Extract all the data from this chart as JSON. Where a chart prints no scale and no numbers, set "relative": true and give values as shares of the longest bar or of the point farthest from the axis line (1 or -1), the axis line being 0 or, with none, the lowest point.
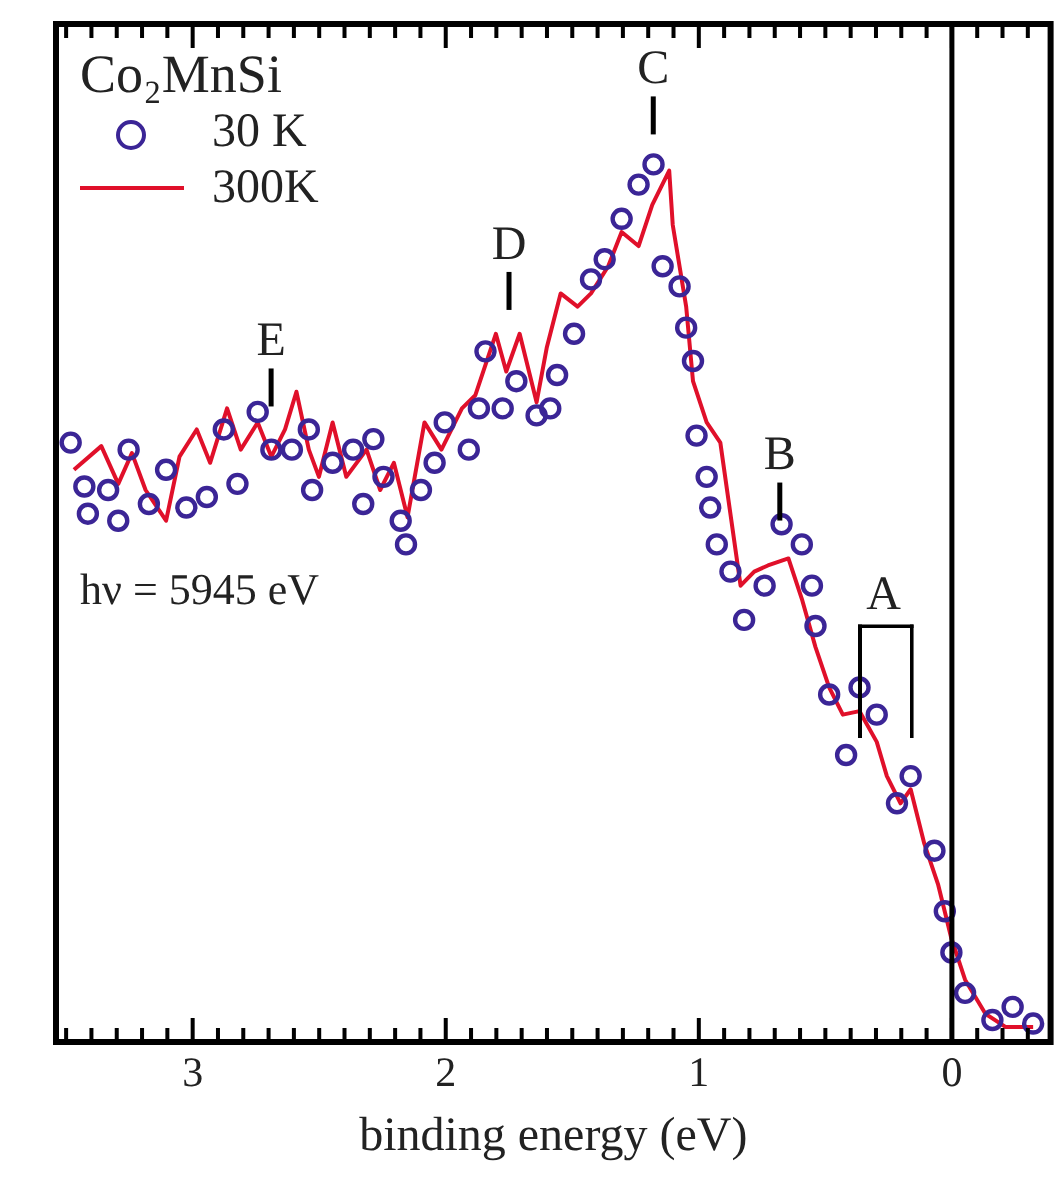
{
  "chart_data": {
    "type": "line",
    "xlabel": "binding energy (eV)",
    "legend_title": "Co₂MnSi",
    "legend": "top left",
    "relative": true,
    "xlim": [
      3.54,
      -0.39
    ],
    "xticks": [
      {
        "value": 3.5,
        "label": null
      },
      {
        "value": 3.4,
        "label": null
      },
      {
        "value": 3.3,
        "label": null
      },
      {
        "value": 3.2,
        "label": null
      },
      {
        "value": 3.1,
        "label": null
      },
      3,
      {
        "value": 2.9,
        "label": null
      },
      {
        "value": 2.8,
        "label": null
      },
      {
        "value": 2.7,
        "label": null
      },
      {
        "value": 2.6,
        "label": null
      },
      {
        "value": 2.5,
        "label": null
      },
      {
        "value": 2.4,
        "label": null
      },
      {
        "value": 2.3,
        "label": null
      },
      {
        "value": 2.2,
        "label": null
      },
      {
        "value": 2.1,
        "label": null
      },
      2,
      {
        "value": 1.9,
        "label": null
      },
      {
        "value": 1.8,
        "label": null
      },
      {
        "value": 1.7,
        "label": null
      },
      {
        "value": 1.6,
        "label": null
      },
      {
        "value": 1.5,
        "label": null
      },
      {
        "value": 1.4,
        "label": null
      },
      {
        "value": 1.3,
        "label": null
      },
      {
        "value": 1.2,
        "label": null
      },
      {
        "value": 1.1,
        "label": null
      },
      1,
      {
        "value": 0.9,
        "label": null
      },
      {
        "value": 0.8,
        "label": null
      },
      {
        "value": 0.7,
        "label": null
      },
      {
        "value": 0.6,
        "label": null
      },
      {
        "value": 0.5,
        "label": null
      },
      {
        "value": 0.4,
        "label": null
      },
      {
        "value": 0.3,
        "label": null
      },
      {
        "value": 0.2,
        "label": null
      },
      {
        "value": 0.1,
        "label": null
      },
      0,
      {
        "value": -0.1,
        "label": null
      },
      {
        "value": -0.2,
        "label": null
      },
      {
        "value": -0.3,
        "label": null
      }
    ],
    "ref_lines": [
      {
        "axis": "x",
        "value": 0,
        "color": "#000000"
      }
    ],
    "annotations": [
      "hν = 5945 eV",
      {
        "text": "E",
        "x": 2.69,
        "y": 0.69
      },
      {
        "text": "D",
        "x": 1.75,
        "y": 0.8
      },
      {
        "text": "C",
        "x": 1.18,
        "y": 1
      },
      {
        "text": "B",
        "x": 0.68,
        "y": 0.56
      },
      {
        "text": "A",
        "x": 0.27,
        "y": 0.38
      }
    ],
    "series": [
      {
        "name": "30 K",
        "type": "scatter",
        "marker": "circle",
        "color": "#3b2596",
        "x": [
          3.482,
          3.428,
          3.414,
          3.334,
          3.294,
          3.253,
          3.173,
          3.105,
          3.025,
          2.944,
          2.877,
          2.823,
          2.743,
          2.689,
          2.608,
          2.541,
          2.528,
          2.447,
          2.366,
          2.326,
          2.286,
          2.246,
          2.178,
          2.157,
          2.098,
          2.044,
          2.004,
          1.909,
          1.869,
          1.843,
          1.775,
          1.721,
          1.641,
          1.587,
          1.56,
          1.493,
          1.426,
          1.372,
          1.305,
          1.238,
          1.179,
          1.143,
          1.076,
          1.05,
          1.023,
          1.009,
          0.969,
          0.955,
          0.929,
          0.875,
          0.821,
          0.74,
          0.673,
          0.593,
          0.553,
          0.539,
          0.485,
          0.418,
          0.365,
          0.297,
          0.217,
          0.163,
          0.069,
          0.028,
          0.002,
          -0.052,
          -0.16,
          -0.24,
          -0.321
        ],
        "values": [
          0.683,
          0.633,
          0.602,
          0.629,
          0.594,
          0.675,
          0.613,
          0.652,
          0.609,
          0.621,
          0.698,
          0.636,
          0.718,
          0.675,
          0.675,
          0.698,
          0.629,
          0.66,
          0.675,
          0.613,
          0.687,
          0.644,
          0.594,
          0.567,
          0.629,
          0.66,
          0.706,
          0.675,
          0.722,
          0.787,
          0.722,
          0.753,
          0.714,
          0.722,
          0.76,
          0.807,
          0.869,
          0.892,
          0.938,
          0.977,
          1,
          0.884,
          0.861,
          0.814,
          0.776,
          0.691,
          0.644,
          0.609,
          0.567,
          0.536,
          0.481,
          0.52,
          0.59,
          0.567,
          0.52,
          0.474,
          0.396,
          0.327,
          0.404,
          0.373,
          0.272,
          0.303,
          0.218,
          0.149,
          0.102,
          0.056,
          0.025,
          0.04,
          0.021
        ]
      },
      {
        "name": "300K",
        "type": "line",
        "marker": "none",
        "color": "#e0102a",
        "x": [
          3.469,
          3.361,
          3.294,
          3.24,
          3.186,
          3.105,
          3.052,
          2.984,
          2.931,
          2.864,
          2.81,
          2.743,
          2.689,
          2.635,
          2.59,
          2.541,
          2.501,
          2.447,
          2.393,
          2.313,
          2.259,
          2.205,
          2.151,
          2.084,
          2.017,
          1.936,
          1.883,
          1.802,
          1.761,
          1.708,
          1.641,
          1.601,
          1.546,
          1.479,
          1.426,
          1.358,
          1.305,
          1.238,
          1.184,
          1.117,
          1.103,
          1.05,
          1.023,
          0.969,
          0.915,
          0.835,
          0.781,
          0.727,
          0.646,
          0.593,
          0.539,
          0.485,
          0.431,
          0.365,
          0.297,
          0.257,
          0.203,
          0.163,
          0.109,
          0.055,
          0.002,
          -0.052,
          -0.133,
          -0.213,
          -0.321
        ],
        "values": [
          0.652,
          0.679,
          0.636,
          0.671,
          0.629,
          0.594,
          0.667,
          0.698,
          0.66,
          0.722,
          0.675,
          0.706,
          0.667,
          0.698,
          0.741,
          0.675,
          0.644,
          0.706,
          0.644,
          0.675,
          0.629,
          0.66,
          0.598,
          0.706,
          0.675,
          0.722,
          0.737,
          0.807,
          0.764,
          0.807,
          0.729,
          0.791,
          0.853,
          0.838,
          0.853,
          0.884,
          0.923,
          0.907,
          0.954,
          0.993,
          0.931,
          0.838,
          0.753,
          0.706,
          0.683,
          0.52,
          0.536,
          0.543,
          0.551,
          0.505,
          0.45,
          0.404,
          0.373,
          0.377,
          0.342,
          0.303,
          0.272,
          0.288,
          0.226,
          0.18,
          0.118,
          0.071,
          0.032,
          0.017,
          0.017
        ]
      }
    ]
  }
}
